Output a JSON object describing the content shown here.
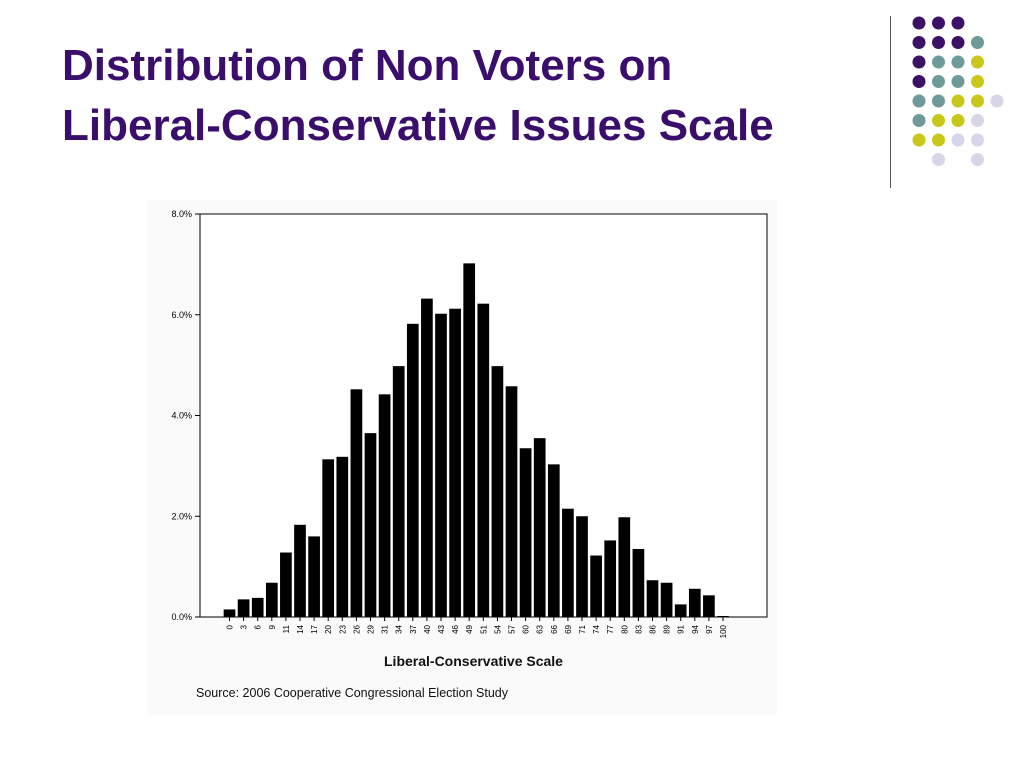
{
  "slide": {
    "title_line1": "Distribution of Non Voters on",
    "title_line2": "Liberal-Conservative Issues Scale",
    "title_color": "#3a0e6b"
  },
  "decor": {
    "dot_colors": {
      "purple": "#3d1266",
      "teal": "#6f9a9a",
      "olive": "#c9c81a",
      "lavender": "#d6d6e8"
    },
    "dot_pattern": [
      [
        "purple",
        "purple",
        "purple",
        null
      ],
      [
        "purple",
        "purple",
        "purple",
        "teal"
      ],
      [
        "purple",
        "teal",
        "teal",
        "olive"
      ],
      [
        "purple",
        "teal",
        "teal",
        "olive"
      ],
      [
        "teal",
        "teal",
        "olive",
        "olive",
        "lavender"
      ],
      [
        "teal",
        "olive",
        "olive",
        "lavender"
      ],
      [
        "olive",
        "olive",
        "lavender",
        "lavender"
      ],
      [
        null,
        "lavender",
        null,
        "lavender"
      ]
    ]
  },
  "chart_data": {
    "type": "bar",
    "title": "",
    "xlabel": "Liberal-Conservative Scale",
    "ylabel": "",
    "ylim": [
      0,
      8
    ],
    "y_unit": "%",
    "y_ticks": [
      "0.0%",
      "2.0%",
      "4.0%",
      "6.0%",
      "8.0%"
    ],
    "grid": false,
    "bar_color": "#000000",
    "categories": [
      "0",
      "3",
      "6",
      "9",
      "11",
      "14",
      "17",
      "20",
      "23",
      "26",
      "29",
      "31",
      "34",
      "37",
      "40",
      "43",
      "46",
      "49",
      "51",
      "54",
      "57",
      "60",
      "63",
      "66",
      "69",
      "71",
      "74",
      "77",
      "80",
      "83",
      "86",
      "89",
      "91",
      "94",
      "97",
      "100"
    ],
    "values": [
      0.15,
      0.35,
      0.38,
      0.68,
      1.28,
      1.83,
      1.6,
      3.13,
      3.18,
      4.52,
      3.65,
      4.42,
      4.98,
      5.82,
      6.32,
      6.02,
      6.12,
      7.02,
      6.22,
      4.98,
      4.58,
      3.35,
      3.55,
      3.03,
      2.15,
      2.0,
      1.22,
      1.52,
      1.98,
      1.35,
      0.73,
      0.68,
      0.25,
      0.56,
      0.43,
      0.02
    ],
    "source": "Source: 2006 Cooperative Congressional Election Study"
  }
}
